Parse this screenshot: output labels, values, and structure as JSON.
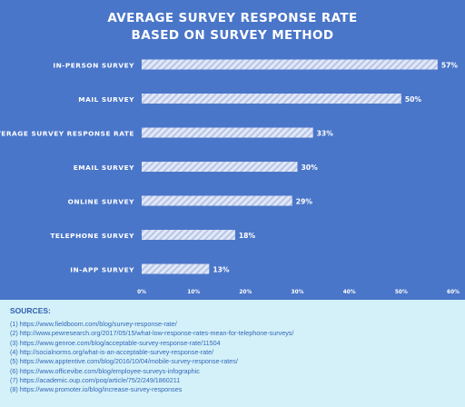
{
  "colors": {
    "background": "#4a76c9",
    "bar": "#dfe6f7",
    "bar_stripe": "#b9c7e8",
    "text": "#ffffff",
    "sources_bg": "#d4f1f9",
    "sources_text": "#2f5fae"
  },
  "chart_data": {
    "type": "bar",
    "orientation": "horizontal",
    "title_lines": [
      "AVERAGE SURVEY RESPONSE RATE",
      "BASED ON SURVEY METHOD"
    ],
    "categories": [
      "IN-PERSON SURVEY",
      "MAIL SURVEY",
      "AVERAGE SURVEY RESPONSE RATE",
      "EMAIL SURVEY",
      "ONLINE SURVEY",
      "TELEPHONE SURVEY",
      "IN-APP SURVEY"
    ],
    "values": [
      57,
      50,
      33,
      30,
      29,
      18,
      13
    ],
    "value_labels": [
      "57%",
      "50%",
      "33%",
      "30%",
      "29%",
      "18%",
      "13%"
    ],
    "x_ticks": [
      0,
      10,
      20,
      30,
      40,
      50,
      60
    ],
    "x_tick_labels": [
      "0%",
      "10%",
      "20%",
      "30%",
      "40%",
      "50%",
      "60%"
    ],
    "xlim": [
      0,
      60
    ],
    "grid": false,
    "legend": "none"
  },
  "sources": {
    "heading": "SOURCES:",
    "items": [
      "(1) https://www.fieldboom.com/blog/survey-response-rate/",
      "(2) http://www.pewresearch.org/2017/05/15/what-low-response-rates-mean-for-telephone-surveys/",
      "(3) https://www.genroe.com/blog/acceptable-survey-response-rate/11504",
      "(4) http://socialnorms.org/what-is-an-acceptable-survey-response-rate/",
      "(5) https://www.apptentive.com/blog/2016/10/04/mobile-survey-response-rates/",
      "(6) https://www.officevibe.com/blog/employee-surveys-infographic",
      "(7) https://academic.oup.com/poq/article/75/2/249/1860211",
      "(8) https://www.promoter.io/blog/increase-survey-responses"
    ]
  }
}
